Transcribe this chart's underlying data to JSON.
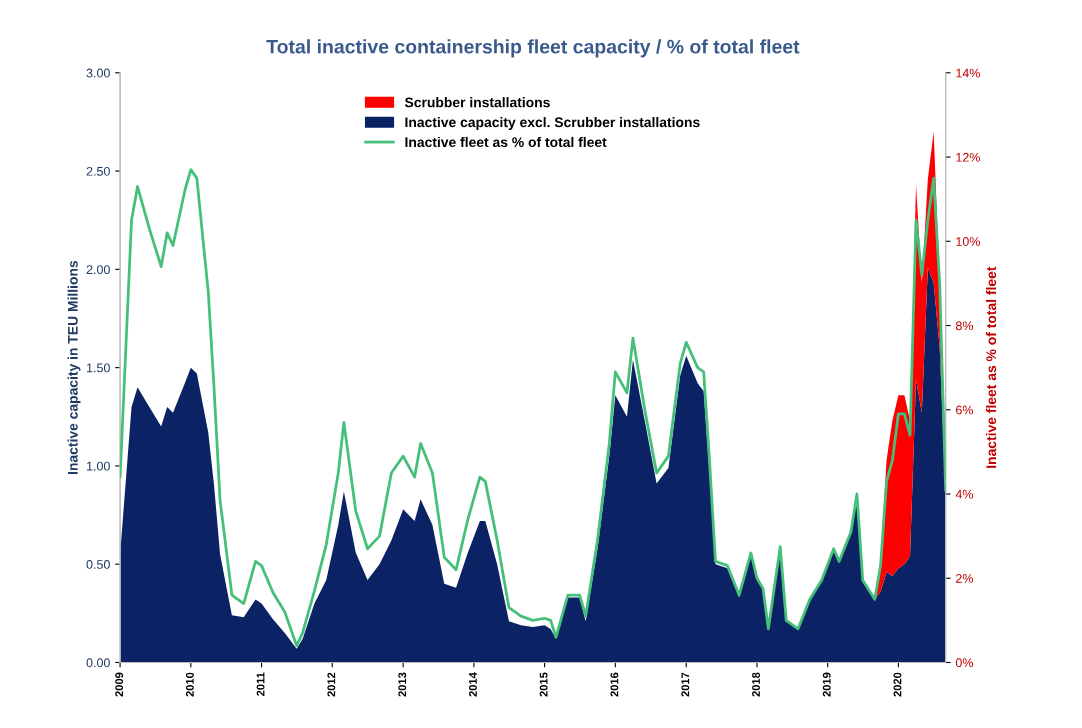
{
  "chart_data": {
    "type": "area",
    "stacked": true,
    "title": "Total inactive containership fleet capacity / % of total fleet",
    "ylabel": "Inactive capacity in TEU Millions",
    "y2label": "Inactive fleet as % of total fleet",
    "x": [
      "2009-01",
      "2009-03",
      "2009-04",
      "2009-06",
      "2009-08",
      "2009-09",
      "2009-10",
      "2009-12",
      "2010-01",
      "2010-02",
      "2010-04",
      "2010-05",
      "2010-06",
      "2010-08",
      "2010-10",
      "2010-12",
      "2011-01",
      "2011-03",
      "2011-05",
      "2011-07",
      "2011-08",
      "2011-10",
      "2011-12",
      "2012-02",
      "2012-03",
      "2012-05",
      "2012-07",
      "2012-09",
      "2012-11",
      "2013-01",
      "2013-03",
      "2013-04",
      "2013-06",
      "2013-08",
      "2013-10",
      "2013-12",
      "2014-02",
      "2014-03",
      "2014-05",
      "2014-07",
      "2014-09",
      "2014-11",
      "2015-01",
      "2015-02",
      "2015-03",
      "2015-05",
      "2015-07",
      "2015-08",
      "2015-10",
      "2015-12",
      "2016-01",
      "2016-03",
      "2016-04",
      "2016-06",
      "2016-08",
      "2016-10",
      "2016-12",
      "2017-01",
      "2017-03",
      "2017-04",
      "2017-05",
      "2017-06",
      "2017-08",
      "2017-10",
      "2017-12",
      "2018-01",
      "2018-02",
      "2018-03",
      "2018-05",
      "2018-06",
      "2018-08",
      "2018-10",
      "2018-12",
      "2019-02",
      "2019-03",
      "2019-05",
      "2019-06",
      "2019-07",
      "2019-09",
      "2019-10",
      "2019-11",
      "2019-12",
      "2020-01",
      "2020-02",
      "2020-03",
      "2020-04",
      "2020-05",
      "2020-06",
      "2020-07",
      "2020-08",
      "2020-09"
    ],
    "series": [
      {
        "name": "Inactive capacity excl. Scrubber installations",
        "color": "#0b2265",
        "values": [
          0.55,
          1.3,
          1.4,
          1.3,
          1.2,
          1.3,
          1.27,
          1.42,
          1.5,
          1.47,
          1.17,
          0.9,
          0.55,
          0.24,
          0.23,
          0.32,
          0.3,
          0.22,
          0.15,
          0.07,
          0.12,
          0.3,
          0.42,
          0.7,
          0.87,
          0.56,
          0.42,
          0.5,
          0.62,
          0.78,
          0.72,
          0.83,
          0.7,
          0.4,
          0.38,
          0.56,
          0.72,
          0.72,
          0.5,
          0.21,
          0.19,
          0.18,
          0.19,
          0.17,
          0.12,
          0.33,
          0.33,
          0.21,
          0.58,
          1.05,
          1.36,
          1.25,
          1.54,
          1.23,
          0.91,
          0.99,
          1.46,
          1.56,
          1.42,
          1.38,
          0.96,
          0.5,
          0.48,
          0.33,
          0.56,
          0.44,
          0.38,
          0.17,
          0.59,
          0.21,
          0.17,
          0.32,
          0.42,
          0.58,
          0.52,
          0.66,
          0.87,
          0.42,
          0.32,
          0.36,
          0.46,
          0.44,
          0.48,
          0.5,
          0.54,
          1.44,
          1.27,
          2.01,
          1.93,
          1.6,
          0.87
        ]
      },
      {
        "name": "Scrubber installations",
        "color": "#ff0000",
        "values": [
          0,
          0,
          0,
          0,
          0,
          0,
          0,
          0,
          0,
          0,
          0,
          0,
          0,
          0,
          0,
          0,
          0,
          0,
          0,
          0,
          0,
          0,
          0,
          0,
          0,
          0,
          0,
          0,
          0,
          0,
          0,
          0,
          0,
          0,
          0,
          0,
          0,
          0,
          0,
          0,
          0,
          0,
          0,
          0,
          0,
          0,
          0,
          0,
          0,
          0,
          0,
          0,
          0,
          0,
          0,
          0,
          0,
          0,
          0,
          0,
          0,
          0,
          0,
          0,
          0,
          0,
          0,
          0,
          0,
          0,
          0,
          0,
          0,
          0,
          0,
          0,
          0,
          0,
          0,
          0.16,
          0.57,
          0.79,
          0.88,
          0.86,
          0.69,
          0.99,
          0.66,
          0.45,
          0.77,
          0.33,
          0.05
        ]
      },
      {
        "name": "Inactive fleet as % of total fleet",
        "type": "line",
        "axis": "y2",
        "color": "#45c07a",
        "values": [
          4.4,
          10.5,
          11.3,
          10.3,
          9.4,
          10.2,
          9.9,
          11.2,
          11.7,
          11.5,
          8.8,
          6.5,
          3.85,
          1.6,
          1.4,
          2.4,
          2.3,
          1.66,
          1.2,
          0.4,
          0.7,
          1.7,
          2.8,
          4.5,
          5.7,
          3.6,
          2.7,
          3.0,
          4.5,
          4.9,
          4.4,
          5.2,
          4.5,
          2.5,
          2.2,
          3.4,
          4.4,
          4.3,
          2.9,
          1.3,
          1.1,
          1.0,
          1.05,
          1.0,
          0.6,
          1.6,
          1.6,
          1.1,
          2.9,
          5.2,
          6.9,
          6.4,
          7.7,
          6.0,
          4.5,
          4.9,
          7.1,
          7.6,
          7.0,
          6.9,
          4.8,
          2.4,
          2.3,
          1.6,
          2.6,
          2.0,
          1.76,
          0.8,
          2.75,
          1.0,
          0.8,
          1.5,
          1.95,
          2.7,
          2.4,
          3.1,
          4.0,
          1.95,
          1.5,
          2.3,
          4.3,
          4.8,
          5.9,
          5.9,
          5.4,
          10.5,
          9.2,
          10.5,
          11.5,
          9.0,
          4.1
        ]
      }
    ],
    "xlim": [
      "2009-01",
      "2020-09"
    ],
    "xticks": [
      "2009",
      "2010",
      "2011",
      "2012",
      "2013",
      "2014",
      "2015",
      "2016",
      "2017",
      "2018",
      "2019",
      "2020"
    ],
    "ylim": [
      0,
      3
    ],
    "yticks": [
      {
        "value": 0,
        "label": "0.00"
      },
      {
        "value": 0.5,
        "label": "0.50"
      },
      {
        "value": 1,
        "label": "1.00"
      },
      {
        "value": 1.5,
        "label": "1.50"
      },
      {
        "value": 2,
        "label": "2.00"
      },
      {
        "value": 2.5,
        "label": "2.50"
      },
      {
        "value": 3,
        "label": "3.00"
      }
    ],
    "y2lim": [
      0,
      14
    ],
    "y2ticks": [
      {
        "value": 0,
        "label": "0%"
      },
      {
        "value": 2,
        "label": "2%"
      },
      {
        "value": 4,
        "label": "4%"
      },
      {
        "value": 6,
        "label": "6%"
      },
      {
        "value": 8,
        "label": "8%"
      },
      {
        "value": 10,
        "label": "10%"
      },
      {
        "value": 12,
        "label": "12%"
      },
      {
        "value": 14,
        "label": "14%"
      }
    ],
    "legend": "top",
    "grid": false
  }
}
